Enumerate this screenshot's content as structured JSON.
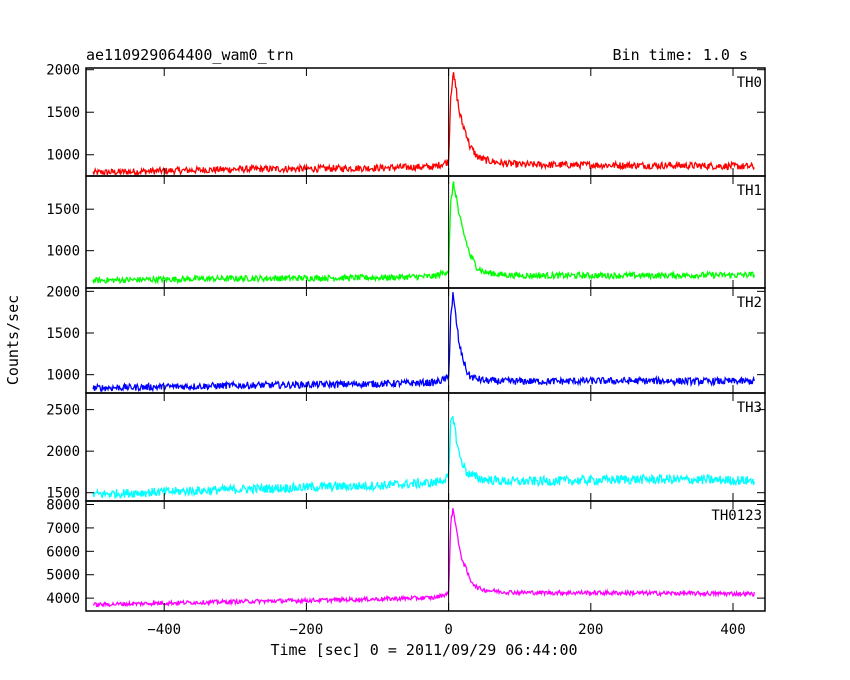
{
  "header": {
    "title": "ae110929064400_wam0_trn",
    "bin_time": "Bin time: 1.0 s"
  },
  "chart_data": {
    "type": "line",
    "title": "ae110929064400_wam0_trn",
    "bin_time_s": 1.0,
    "xlabel": "Time [sec] 0 = 2011/09/29 06:44:00",
    "ylabel": "Counts/sec",
    "xlim": [
      -510,
      445
    ],
    "x_ticks": [
      -400,
      -200,
      0,
      200,
      400
    ],
    "x_tick_labels": [
      "−400",
      "−200",
      "0",
      "200",
      "400"
    ],
    "event_time": 0,
    "grid": false,
    "series": [
      {
        "name": "TH0",
        "color": "#ff0000",
        "ylim": [
          750,
          2020
        ],
        "y_ticks": [
          1000,
          1500,
          2000
        ],
        "y_tick_labels": [
          "1000",
          "1500",
          "2000"
        ],
        "x": [
          -500,
          -400,
          -300,
          -200,
          -100,
          -20,
          0,
          3,
          6,
          10,
          15,
          20,
          25,
          30,
          40,
          50,
          75,
          100,
          150,
          200,
          250,
          300,
          350,
          400,
          430
        ],
        "values": [
          790,
          810,
          830,
          835,
          845,
          860,
          920,
          1700,
          1950,
          1800,
          1500,
          1350,
          1250,
          1100,
          980,
          940,
          900,
          885,
          880,
          880,
          875,
          875,
          870,
          865,
          860
        ]
      },
      {
        "name": "TH1",
        "color": "#00ff00",
        "ylim": [
          550,
          1900
        ],
        "y_ticks": [
          1000,
          1500
        ],
        "y_tick_labels": [
          "1000",
          "1500"
        ],
        "x": [
          -500,
          -400,
          -300,
          -200,
          -100,
          -20,
          0,
          3,
          6,
          10,
          15,
          20,
          25,
          30,
          40,
          50,
          75,
          100,
          150,
          200,
          250,
          300,
          350,
          400,
          430
        ],
        "values": [
          640,
          655,
          665,
          670,
          675,
          690,
          760,
          1550,
          1800,
          1700,
          1400,
          1250,
          1100,
          950,
          800,
          740,
          710,
          700,
          700,
          700,
          700,
          700,
          705,
          705,
          710
        ]
      },
      {
        "name": "TH2",
        "color": "#0000ff",
        "ylim": [
          780,
          2040
        ],
        "y_ticks": [
          1000,
          1500,
          2000
        ],
        "y_tick_labels": [
          "1000",
          "1500",
          "2000"
        ],
        "x": [
          -500,
          -400,
          -300,
          -200,
          -100,
          -20,
          0,
          3,
          6,
          10,
          15,
          20,
          25,
          30,
          40,
          50,
          75,
          100,
          150,
          200,
          250,
          300,
          350,
          400,
          430
        ],
        "values": [
          840,
          855,
          870,
          880,
          890,
          905,
          960,
          1700,
          1950,
          1700,
          1350,
          1200,
          1050,
          980,
          950,
          930,
          920,
          920,
          920,
          925,
          925,
          925,
          920,
          920,
          920
        ]
      },
      {
        "name": "TH3",
        "color": "#00ffff",
        "ylim": [
          1400,
          2700
        ],
        "y_ticks": [
          1500,
          2000,
          2500
        ],
        "y_tick_labels": [
          "1500",
          "2000",
          "2500"
        ],
        "x": [
          -500,
          -400,
          -300,
          -200,
          -100,
          -20,
          0,
          3,
          6,
          10,
          15,
          20,
          25,
          30,
          40,
          50,
          75,
          100,
          150,
          200,
          250,
          300,
          350,
          400,
          430
        ],
        "values": [
          1480,
          1510,
          1540,
          1565,
          1585,
          1620,
          1680,
          2300,
          2450,
          2200,
          1950,
          1850,
          1750,
          1720,
          1680,
          1660,
          1640,
          1635,
          1640,
          1650,
          1660,
          1660,
          1655,
          1650,
          1645
        ]
      },
      {
        "name": "TH0123",
        "color": "#ff00ff",
        "ylim": [
          3450,
          8150
        ],
        "y_ticks": [
          4000,
          5000,
          6000,
          7000,
          8000
        ],
        "y_tick_labels": [
          "4000",
          "5000",
          "6000",
          "7000",
          "8000"
        ],
        "x": [
          -500,
          -400,
          -300,
          -200,
          -100,
          -20,
          0,
          3,
          6,
          10,
          15,
          20,
          25,
          30,
          40,
          50,
          75,
          100,
          150,
          200,
          250,
          300,
          350,
          400,
          430
        ],
        "values": [
          3720,
          3790,
          3850,
          3900,
          3960,
          4020,
          4200,
          7200,
          7800,
          7200,
          6100,
          5600,
          5200,
          4800,
          4450,
          4350,
          4270,
          4240,
          4230,
          4230,
          4220,
          4210,
          4200,
          4190,
          4180
        ]
      }
    ]
  }
}
